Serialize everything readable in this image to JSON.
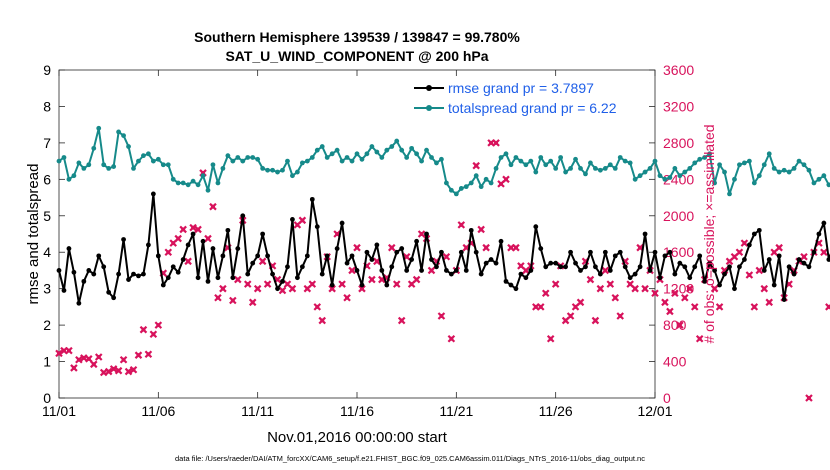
{
  "chart_data": {
    "type": "line",
    "title": "Southern Hemisphere 139539 / 139847 = 99.780%",
    "subtitle": "SAT_U_WIND_COMPONENT @ 200 hPa",
    "xlabel": "Nov.01,2016 00:00:00 start",
    "ylabel_left": "rmse and totalspread",
    "ylabel_right": "# of obs: o=possible; ×=assimilated",
    "footnote": "data file: /Users/raeder/DAI/ATM_forcXX/CAM6_setup/f.e21.FHIST_BGC.f09_025.CAM6assim.011/Diags_NTrS_2016-11/obs_diag_output.nc",
    "xlim": [
      0,
      30
    ],
    "ylim_left": [
      0,
      9
    ],
    "ylim_right": [
      0,
      3600
    ],
    "x_ticks": [
      0,
      5,
      10,
      15,
      20,
      25,
      30
    ],
    "x_tick_labels": [
      "11/01",
      "11/06",
      "11/11",
      "11/16",
      "11/21",
      "11/26",
      "12/01"
    ],
    "y_ticks_left": [
      0,
      1,
      2,
      3,
      4,
      5,
      6,
      7,
      8,
      9
    ],
    "y_tick_labels_left": [
      "0",
      "1",
      "2",
      "3",
      "4",
      "5",
      "6",
      "7",
      "8",
      "9"
    ],
    "y_ticks_right": [
      0,
      400,
      800,
      1200,
      1600,
      2000,
      2400,
      2800,
      3200,
      3600
    ],
    "y_tick_labels_right": [
      "0",
      "400",
      "800",
      "1200",
      "1600",
      "2000",
      "2400",
      "2800",
      "3200",
      "3600"
    ],
    "grid": false,
    "legend_position": "top-right",
    "colors": {
      "rmse": "#000000",
      "spread": "#168a8a",
      "obs": "#d8135c",
      "legend_text": "#1f5fe8",
      "right_axis": "#d8135c"
    },
    "series": [
      {
        "name": "rmse grand pr = 3.7897",
        "axis": "left",
        "x_start": 0.0,
        "x_step": 0.25,
        "values": [
          3.5,
          2.95,
          4.1,
          3.45,
          2.6,
          3.2,
          3.5,
          3.4,
          3.9,
          3.6,
          2.9,
          2.75,
          3.4,
          4.35,
          3.25,
          3.4,
          3.35,
          3.4,
          4.2,
          5.6,
          3.9,
          3.1,
          3.3,
          3.6,
          3.45,
          3.8,
          4.2,
          4.5,
          3.3,
          4.3,
          3.2,
          4.1,
          3.3,
          3.9,
          4.6,
          3.3,
          4.1,
          5.0,
          3.4,
          3.7,
          3.9,
          4.5,
          3.9,
          3.4,
          3.0,
          3.2,
          3.6,
          4.9,
          3.3,
          3.6,
          3.9,
          5.45,
          4.7,
          3.4,
          3.9,
          3.1,
          4.1,
          4.8,
          3.7,
          3.9,
          3.5,
          3.1,
          4.0,
          3.8,
          4.2,
          3.5,
          3.1,
          3.6,
          4.0,
          4.1,
          3.5,
          3.8,
          4.3,
          3.5,
          4.5,
          3.8,
          3.6,
          4.0,
          3.5,
          3.4,
          3.5,
          4.0,
          3.5,
          4.6,
          4.0,
          3.4,
          3.7,
          3.8,
          3.7,
          4.3,
          3.2,
          3.1,
          3.0,
          3.4,
          3.3,
          3.5,
          4.7,
          4.1,
          3.6,
          3.7,
          3.7,
          3.6,
          3.6,
          4.0,
          3.7,
          3.5,
          3.6,
          4.0,
          3.6,
          3.4,
          4.0,
          3.5,
          3.9,
          4.0,
          3.6,
          3.3,
          3.4,
          3.6,
          4.5,
          3.5,
          4.0,
          3.3,
          3.9,
          4.0,
          3.4,
          3.7,
          3.6,
          3.3,
          3.6,
          3.9,
          3.2,
          3.7,
          3.5,
          3.1,
          3.4,
          3.6,
          3.0,
          3.6,
          3.8,
          4.2,
          4.5,
          4.6,
          3.5,
          3.8,
          3.1,
          3.9,
          2.7,
          3.6,
          3.4,
          3.8,
          3.7,
          3.6,
          4.0,
          4.5,
          4.8,
          3.8,
          4.2,
          4.4,
          3.5,
          3.3,
          3.3,
          3.4
        ]
      },
      {
        "name": "totalspread grand pr = 6.22",
        "axis": "left",
        "x_start": 0.0,
        "x_step": 0.25,
        "values": [
          6.5,
          6.6,
          6.0,
          6.1,
          6.45,
          6.3,
          6.4,
          6.85,
          7.4,
          6.4,
          6.3,
          6.35,
          7.3,
          7.2,
          6.9,
          6.3,
          6.5,
          6.65,
          6.7,
          6.5,
          6.55,
          6.4,
          6.4,
          6.0,
          5.9,
          5.9,
          5.85,
          5.95,
          5.85,
          6.1,
          5.7,
          6.4,
          5.9,
          6.3,
          6.65,
          6.5,
          6.6,
          6.5,
          6.6,
          6.6,
          6.55,
          6.3,
          6.25,
          6.25,
          6.2,
          6.25,
          6.5,
          6.1,
          6.2,
          6.45,
          6.5,
          6.6,
          6.8,
          6.9,
          6.6,
          6.7,
          6.8,
          6.5,
          6.6,
          6.5,
          6.7,
          6.55,
          6.7,
          6.9,
          6.75,
          6.6,
          6.8,
          6.9,
          7.05,
          6.8,
          6.6,
          6.85,
          6.7,
          6.5,
          6.8,
          6.6,
          6.45,
          6.55,
          5.9,
          5.7,
          5.6,
          5.75,
          5.8,
          5.9,
          6.1,
          5.8,
          6.0,
          5.9,
          6.3,
          6.6,
          6.7,
          6.4,
          6.6,
          6.5,
          6.4,
          6.5,
          6.2,
          6.6,
          6.4,
          6.5,
          6.3,
          6.6,
          6.2,
          6.3,
          6.55,
          6.3,
          6.15,
          6.45,
          6.3,
          6.25,
          6.3,
          6.4,
          6.3,
          6.6,
          6.5,
          6.45,
          6.0,
          6.1,
          6.2,
          6.3,
          6.5,
          6.1,
          6.0,
          6.05,
          6.3,
          6.1,
          6.2,
          6.3,
          6.45,
          6.55,
          6.6,
          6.7,
          5.9,
          6.4,
          6.2,
          5.6,
          6.0,
          6.4,
          6.45,
          6.5,
          5.9,
          6.1,
          6.4,
          6.7,
          6.3,
          6.2,
          6.25,
          6.2,
          6.3,
          6.5,
          6.4,
          6.25,
          5.9,
          6.0,
          6.1,
          5.85,
          5.85,
          5.9,
          5.65,
          5.7,
          5.8,
          5.95,
          6.1
        ]
      },
      {
        "name": "obs assimilated",
        "axis": "right",
        "x_start": 0.0,
        "x_step": 0.25,
        "values": [
          490,
          520,
          520,
          330,
          420,
          440,
          430,
          370,
          450,
          280,
          290,
          320,
          300,
          420,
          290,
          310,
          470,
          750,
          480,
          700,
          800,
          1370,
          1600,
          1700,
          1750,
          1850,
          1500,
          1870,
          1850,
          2470,
          1750,
          2100,
          1100,
          1200,
          1650,
          1070,
          1300,
          1950,
          1250,
          1050,
          1200,
          1500,
          1250,
          1450,
          1300,
          1180,
          1250,
          1200,
          1900,
          1950,
          1200,
          1250,
          1000,
          850,
          1550,
          1200,
          1800,
          1250,
          1100,
          1400,
          1650,
          1200,
          1450,
          1300,
          1500,
          1300,
          1320,
          1650,
          1250,
          850,
          1550,
          1250,
          1300,
          1800,
          1750,
          1400,
          1500,
          900,
          1550,
          650,
          1400,
          1900,
          1650,
          1700,
          2550,
          1850,
          1650,
          2800,
          2800,
          2350,
          2400,
          1650,
          1650,
          1450,
          1400,
          1450,
          1000,
          1000,
          1150,
          650,
          1250,
          1450,
          850,
          900,
          1000,
          1050,
          1500,
          1300,
          850,
          1200,
          1400,
          1250,
          1100,
          900,
          1500,
          1250,
          1200,
          1650,
          1200,
          1400,
          1150,
          1300,
          1050,
          950,
          1150,
          800,
          1100,
          1200,
          1000,
          650,
          1300,
          1450,
          1200,
          1000,
          1400,
          1500,
          1550,
          1600,
          1700,
          1350,
          1000,
          1400,
          1200,
          1050,
          1600,
          1650,
          1100,
          1250,
          1400,
          1500,
          1550,
          0,
          1600,
          1700,
          1600,
          1000,
          800,
          1400,
          1650,
          600,
          500
        ]
      }
    ]
  }
}
